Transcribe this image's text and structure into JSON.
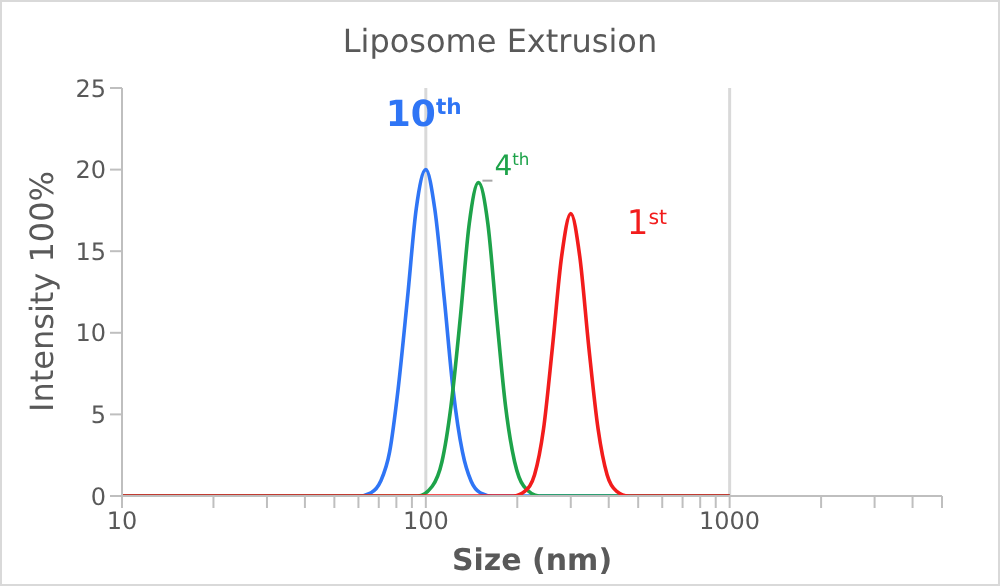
{
  "chart_data": {
    "type": "line",
    "title": "Liposome Extrusion",
    "xlabel": "Size (nm)",
    "ylabel": "Intensity 100%",
    "log": "x",
    "grid": "x",
    "legend": false,
    "marker": "none",
    "line_style": "solid",
    "xlim": [
      10,
      5000
    ],
    "xticks": [
      10,
      {
        "value": 20,
        "label": null
      },
      {
        "value": 30,
        "label": null
      },
      {
        "value": 40,
        "label": null
      },
      {
        "value": 50,
        "label": null
      },
      {
        "value": 60,
        "label": null
      },
      {
        "value": 70,
        "label": null
      },
      {
        "value": 80,
        "label": null
      },
      {
        "value": 90,
        "label": null
      },
      100,
      {
        "value": 200,
        "label": null
      },
      {
        "value": 300,
        "label": null
      },
      {
        "value": 400,
        "label": null
      },
      {
        "value": 500,
        "label": null
      },
      {
        "value": 600,
        "label": null
      },
      {
        "value": 700,
        "label": null
      },
      {
        "value": 800,
        "label": null
      },
      {
        "value": 900,
        "label": null
      },
      1000,
      {
        "value": 2000,
        "label": null
      },
      {
        "value": 3000,
        "label": null
      },
      {
        "value": 4000,
        "label": null
      },
      {
        "value": 5000,
        "label": null
      }
    ],
    "ylim": [
      0,
      25
    ],
    "yticks": [
      0,
      5,
      10,
      15,
      20,
      25
    ],
    "series": [
      {
        "name": "10$^{th}$",
        "color": "#2f75f5",
        "x": [
          10,
          60,
          66,
          71,
          76,
          81,
          87,
          93,
          100,
          107,
          115,
          123,
          132,
          141,
          151,
          166,
          1000
        ],
        "values": [
          0,
          0,
          0.2,
          0.9,
          2.7,
          6.5,
          12.1,
          17.6,
          20,
          17.6,
          12.1,
          6.5,
          2.7,
          0.9,
          0.2,
          0,
          0
        ]
      },
      {
        "name": "4$^{th}$",
        "color": "#1ea34a",
        "x": [
          10,
          94,
          105,
          113,
          121,
          130,
          139,
          149,
          160,
          171,
          183,
          196,
          210,
          236,
          1000
        ],
        "values": [
          0,
          0,
          0.6,
          2.1,
          5.5,
          11.0,
          16.7,
          19.2,
          16.7,
          11.0,
          5.5,
          2.1,
          0.6,
          0,
          0
        ]
      },
      {
        "name": "1$^{st}$",
        "color": "#f21c1c",
        "x": [
          10,
          194,
          212,
          228,
          244,
          261,
          280,
          300,
          321,
          344,
          369,
          395,
          424,
          465,
          1000
        ],
        "values": [
          0,
          0,
          0.3,
          1.3,
          4.1,
          9.1,
          14.7,
          17.3,
          14.7,
          9.1,
          4.1,
          1.3,
          0.3,
          0,
          0
        ]
      }
    ]
  }
}
